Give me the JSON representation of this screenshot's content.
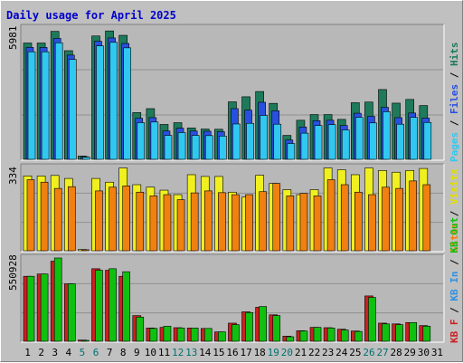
{
  "title": "Daily usage for April 2025",
  "colors": {
    "background": "#c0c0c0",
    "plot_bg": "#b8b8b8",
    "title": "#0000cc",
    "hits": "#1e7a5a",
    "files": "#2850e0",
    "pages": "#30c8f0",
    "visits": "#f0f020",
    "sites": "#f08010",
    "kb_f": "#cc2020",
    "kb_in": "#3090e0",
    "kb_out": "#10c010",
    "weekend_tick": "#007070",
    "weekday_tick": "#000000"
  },
  "chart_data": [
    {
      "type": "bar",
      "panel": "top",
      "ymax_label": "5981",
      "ymax": 5981,
      "legend": [
        "Pages",
        "Files",
        "Hits"
      ],
      "categories": [
        "1",
        "2",
        "3",
        "4",
        "5",
        "6",
        "7",
        "8",
        "9",
        "10",
        "11",
        "12",
        "13",
        "14",
        "15",
        "16",
        "17",
        "18",
        "19",
        "20",
        "21",
        "22",
        "23",
        "24",
        "25",
        "26",
        "27",
        "28",
        "29",
        "30",
        "31"
      ],
      "series": [
        {
          "name": "Hits",
          "values": [
            5300,
            5300,
            5830,
            4950,
            150,
            5620,
            5850,
            5650,
            2130,
            2310,
            1590,
            1670,
            1430,
            1380,
            1370,
            2620,
            2850,
            3090,
            2550,
            1090,
            1780,
            2040,
            2040,
            1820,
            2580,
            2610,
            3180,
            2560,
            2730,
            2450,
            null
          ]
        },
        {
          "name": "Files",
          "values": [
            5100,
            5100,
            5510,
            4750,
            120,
            5380,
            5530,
            5280,
            1870,
            1900,
            1290,
            1420,
            1290,
            1280,
            1260,
            2310,
            2240,
            2600,
            2210,
            880,
            1470,
            1760,
            1780,
            1540,
            2100,
            1960,
            2370,
            1900,
            2110,
            1880,
            null
          ]
        },
        {
          "name": "Pages",
          "values": [
            4900,
            4900,
            5310,
            4550,
            100,
            5170,
            5330,
            5080,
            1670,
            1700,
            1090,
            1220,
            1090,
            1080,
            1060,
            1610,
            1640,
            2000,
            1600,
            720,
            1190,
            1540,
            1580,
            1340,
            1910,
            1660,
            2170,
            1600,
            1910,
            1680,
            null
          ]
        }
      ]
    },
    {
      "type": "bar",
      "panel": "middle",
      "ymax_label": "334",
      "ymax": 334,
      "legend": [
        "Sites",
        "Visits"
      ],
      "categories": [
        "1",
        "2",
        "3",
        "4",
        "5",
        "6",
        "7",
        "8",
        "9",
        "10",
        "11",
        "12",
        "13",
        "14",
        "15",
        "16",
        "17",
        "18",
        "19",
        "20",
        "21",
        "22",
        "23",
        "24",
        "25",
        "26",
        "27",
        "28",
        "29",
        "30",
        "31"
      ],
      "series": [
        {
          "name": "Visits",
          "values": [
            300,
            300,
            302,
            290,
            5,
            290,
            275,
            332,
            265,
            255,
            243,
            225,
            305,
            298,
            298,
            235,
            215,
            303,
            270,
            245,
            225,
            245,
            332,
            325,
            305,
            332,
            322,
            315,
            322,
            330,
            null
          ]
        },
        {
          "name": "Sites",
          "values": [
            285,
            275,
            250,
            257,
            4,
            240,
            255,
            260,
            235,
            220,
            225,
            205,
            232,
            240,
            233,
            225,
            225,
            237,
            270,
            220,
            230,
            220,
            285,
            265,
            235,
            225,
            255,
            250,
            280,
            265,
            null
          ]
        }
      ]
    },
    {
      "type": "bar",
      "panel": "bottom",
      "ymax_label": "550928",
      "ymax": 550928,
      "legend": [
        "KB F",
        "KB In",
        "KB Out"
      ],
      "categories": [
        "1",
        "2",
        "3",
        "4",
        "5",
        "6",
        "7",
        "8",
        "9",
        "10",
        "11",
        "12",
        "13",
        "14",
        "15",
        "16",
        "17",
        "18",
        "19",
        "20",
        "21",
        "22",
        "23",
        "24",
        "25",
        "26",
        "27",
        "28",
        "29",
        "30",
        "31"
      ],
      "series": [
        {
          "name": "KB F",
          "values": [
            430000,
            445000,
            530000,
            380000,
            8000,
            480000,
            470000,
            430000,
            170000,
            88000,
            92000,
            90000,
            88000,
            85000,
            62000,
            120000,
            195000,
            225000,
            175000,
            34000,
            70000,
            92000,
            90000,
            80000,
            68000,
            300000,
            120000,
            115000,
            124000,
            104000,
            null
          ]
        },
        {
          "name": "KB Out",
          "values": [
            430000,
            445000,
            550928,
            380000,
            6000,
            470000,
            480000,
            460000,
            160000,
            85000,
            100000,
            88000,
            88000,
            85000,
            62000,
            110000,
            190000,
            230000,
            170000,
            30000,
            68000,
            92000,
            88000,
            75000,
            65000,
            290000,
            115000,
            110000,
            124000,
            100000,
            null
          ]
        }
      ]
    }
  ]
}
